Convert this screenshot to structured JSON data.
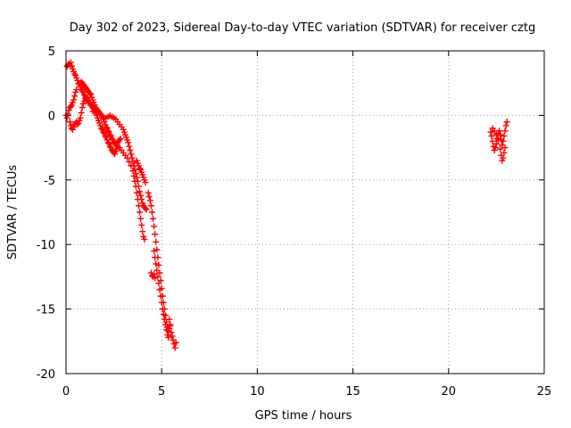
{
  "chart_data": {
    "type": "scatter",
    "title": "Day 302 of 2023, Sidereal Day-to-day VTEC variation (SDTVAR) for receiver cztg",
    "xlabel": "GPS time / hours",
    "ylabel": "SDTVAR / TECUs",
    "xlim": [
      0,
      25
    ],
    "ylim": [
      -20,
      5
    ],
    "xticks": [
      "0",
      "5",
      "10",
      "15",
      "20",
      "25"
    ],
    "yticks": [
      "5",
      "0",
      "-5",
      "-10",
      "-15",
      "-20"
    ],
    "grid": true,
    "marker": "plus",
    "series": [
      {
        "name": "SDTVAR",
        "color": "#ff0000",
        "points": [
          [
            0.05,
            3.8
          ],
          [
            0.1,
            3.9
          ],
          [
            0.15,
            4.0
          ],
          [
            0.2,
            3.9
          ],
          [
            0.25,
            4.1
          ],
          [
            0.3,
            3.8
          ],
          [
            0.35,
            3.6
          ],
          [
            0.4,
            3.4
          ],
          [
            0.45,
            3.2
          ],
          [
            0.5,
            3.1
          ],
          [
            0.55,
            2.9
          ],
          [
            0.6,
            2.7
          ],
          [
            0.65,
            2.5
          ],
          [
            0.7,
            2.4
          ],
          [
            0.75,
            2.2
          ],
          [
            0.8,
            2.0
          ],
          [
            0.85,
            1.9
          ],
          [
            0.9,
            1.8
          ],
          [
            0.95,
            1.6
          ],
          [
            1.0,
            1.5
          ],
          [
            1.05,
            1.4
          ],
          [
            1.1,
            1.3
          ],
          [
            1.15,
            1.1
          ],
          [
            1.2,
            1.0
          ],
          [
            1.25,
            0.9
          ],
          [
            1.3,
            0.8
          ],
          [
            1.35,
            0.7
          ],
          [
            1.4,
            0.6
          ],
          [
            1.45,
            0.5
          ],
          [
            1.5,
            0.3
          ],
          [
            1.55,
            0.2
          ],
          [
            1.6,
            0.0
          ],
          [
            1.65,
            -0.2
          ],
          [
            1.7,
            -0.4
          ],
          [
            1.75,
            -0.6
          ],
          [
            1.8,
            -0.8
          ],
          [
            1.85,
            -1.0
          ],
          [
            1.9,
            -1.1
          ],
          [
            1.95,
            -1.3
          ],
          [
            2.0,
            -1.4
          ],
          [
            2.05,
            -1.6
          ],
          [
            2.1,
            -1.7
          ],
          [
            2.15,
            -1.9
          ],
          [
            2.2,
            -2.1
          ],
          [
            2.25,
            -2.2
          ],
          [
            2.3,
            -2.4
          ],
          [
            2.35,
            -2.5
          ],
          [
            2.4,
            -2.7
          ],
          [
            2.45,
            -2.8
          ],
          [
            2.5,
            -2.9
          ],
          [
            2.55,
            -3.0
          ],
          [
            2.6,
            -2.8
          ],
          [
            2.65,
            -2.6
          ],
          [
            2.7,
            -2.4
          ],
          [
            0.8,
            2.6
          ],
          [
            0.85,
            2.5
          ],
          [
            0.9,
            2.4
          ],
          [
            0.95,
            2.3
          ],
          [
            1.0,
            2.2
          ],
          [
            1.05,
            2.1
          ],
          [
            1.1,
            2.0
          ],
          [
            1.15,
            1.9
          ],
          [
            1.2,
            1.8
          ],
          [
            1.25,
            1.7
          ],
          [
            1.3,
            1.6
          ],
          [
            1.35,
            1.4
          ],
          [
            1.4,
            1.2
          ],
          [
            1.45,
            1.0
          ],
          [
            1.5,
            0.8
          ],
          [
            1.55,
            0.6
          ],
          [
            1.6,
            0.5
          ],
          [
            1.65,
            0.4
          ],
          [
            1.7,
            0.3
          ],
          [
            1.75,
            0.2
          ],
          [
            1.8,
            0.1
          ],
          [
            1.85,
            0.0
          ],
          [
            1.9,
            -0.1
          ],
          [
            1.95,
            -0.3
          ],
          [
            2.0,
            -0.5
          ],
          [
            2.05,
            -0.7
          ],
          [
            2.1,
            -0.9
          ],
          [
            2.15,
            -1.0
          ],
          [
            2.2,
            -1.2
          ],
          [
            2.25,
            -1.3
          ],
          [
            2.3,
            -1.5
          ],
          [
            2.35,
            -1.6
          ],
          [
            2.4,
            -1.8
          ],
          [
            2.45,
            -1.9
          ],
          [
            2.5,
            -2.1
          ],
          [
            2.55,
            -2.2
          ],
          [
            2.6,
            -2.3
          ],
          [
            2.65,
            -2.2
          ],
          [
            2.7,
            -2.1
          ],
          [
            2.75,
            -2.0
          ],
          [
            2.8,
            -1.9
          ],
          [
            2.85,
            -1.8
          ],
          [
            1.4,
            0.3
          ],
          [
            1.5,
            0.4
          ],
          [
            1.6,
            0.5
          ],
          [
            1.7,
            0.3
          ],
          [
            1.8,
            0.1
          ],
          [
            1.9,
            -0.1
          ],
          [
            2.0,
            -0.2
          ],
          [
            2.1,
            -0.2
          ],
          [
            2.2,
            -0.1
          ],
          [
            2.3,
            0.0
          ],
          [
            2.4,
            -0.1
          ],
          [
            2.5,
            -0.2
          ],
          [
            2.6,
            -0.3
          ],
          [
            2.7,
            -0.5
          ],
          [
            2.8,
            -0.7
          ],
          [
            2.9,
            -0.9
          ],
          [
            3.0,
            -1.1
          ],
          [
            3.05,
            -1.3
          ],
          [
            3.1,
            -1.5
          ],
          [
            3.15,
            -1.7
          ],
          [
            3.2,
            -1.9
          ],
          [
            3.25,
            -2.1
          ],
          [
            3.3,
            -2.4
          ],
          [
            3.35,
            -2.7
          ],
          [
            3.4,
            -3.0
          ],
          [
            3.45,
            -3.3
          ],
          [
            3.5,
            -3.6
          ],
          [
            3.55,
            -3.9
          ],
          [
            3.6,
            -4.2
          ],
          [
            3.65,
            -4.5
          ],
          [
            3.7,
            -4.8
          ],
          [
            3.75,
            -5.1
          ],
          [
            3.8,
            -5.5
          ],
          [
            3.85,
            -5.9
          ],
          [
            3.9,
            -6.2
          ],
          [
            3.95,
            -6.5
          ],
          [
            4.0,
            -6.8
          ],
          [
            4.05,
            -7.0
          ],
          [
            4.1,
            -7.1
          ],
          [
            4.15,
            -7.2
          ],
          [
            4.2,
            -7.3
          ],
          [
            2.6,
            -2.2
          ],
          [
            2.7,
            -2.4
          ],
          [
            2.8,
            -2.5
          ],
          [
            2.9,
            -2.7
          ],
          [
            3.0,
            -2.9
          ],
          [
            3.1,
            -3.1
          ],
          [
            3.2,
            -3.3
          ],
          [
            3.3,
            -3.6
          ],
          [
            3.4,
            -3.9
          ],
          [
            3.5,
            -4.3
          ],
          [
            3.55,
            -4.7
          ],
          [
            3.6,
            -5.1
          ],
          [
            3.65,
            -5.5
          ],
          [
            3.7,
            -6.0
          ],
          [
            3.75,
            -6.5
          ],
          [
            3.8,
            -7.0
          ],
          [
            3.85,
            -7.5
          ],
          [
            3.9,
            -8.0
          ],
          [
            3.95,
            -8.5
          ],
          [
            4.0,
            -9.0
          ],
          [
            4.05,
            -9.4
          ],
          [
            4.1,
            -9.6
          ],
          [
            3.7,
            -3.5
          ],
          [
            3.75,
            -3.7
          ],
          [
            3.8,
            -3.9
          ],
          [
            3.85,
            -4.1
          ],
          [
            3.9,
            -4.2
          ],
          [
            3.95,
            -4.4
          ],
          [
            4.0,
            -4.6
          ],
          [
            4.05,
            -4.8
          ],
          [
            4.1,
            -5.0
          ],
          [
            4.15,
            -5.2
          ],
          [
            4.3,
            -6.0
          ],
          [
            4.35,
            -6.3
          ],
          [
            4.4,
            -6.6
          ],
          [
            4.45,
            -7.0
          ],
          [
            4.5,
            -7.5
          ],
          [
            4.55,
            -8.0
          ],
          [
            4.6,
            -8.6
          ],
          [
            4.65,
            -9.2
          ],
          [
            4.7,
            -9.8
          ],
          [
            4.75,
            -10.4
          ],
          [
            4.8,
            -11.0
          ],
          [
            4.85,
            -11.6
          ],
          [
            4.9,
            -12.2
          ],
          [
            4.95,
            -12.8
          ],
          [
            5.0,
            -13.4
          ],
          [
            5.05,
            -14.0
          ],
          [
            5.1,
            -14.5
          ],
          [
            5.15,
            -15.0
          ],
          [
            5.2,
            -15.5
          ],
          [
            5.25,
            -16.0
          ],
          [
            5.3,
            -16.4
          ],
          [
            5.35,
            -16.7
          ],
          [
            5.4,
            -16.5
          ],
          [
            5.45,
            -16.2
          ],
          [
            4.6,
            -10.5
          ],
          [
            4.65,
            -11.0
          ],
          [
            4.7,
            -11.5
          ],
          [
            4.75,
            -12.0
          ],
          [
            4.8,
            -12.5
          ],
          [
            4.85,
            -13.0
          ],
          [
            4.9,
            -13.5
          ],
          [
            4.95,
            -14.0
          ],
          [
            5.0,
            -14.5
          ],
          [
            5.05,
            -15.0
          ],
          [
            5.1,
            -15.4
          ],
          [
            5.15,
            -15.8
          ],
          [
            5.2,
            -16.2
          ],
          [
            5.25,
            -16.6
          ],
          [
            5.3,
            -17.0
          ],
          [
            5.35,
            -17.2
          ],
          [
            5.4,
            -15.8
          ],
          [
            5.45,
            -16.3
          ],
          [
            5.5,
            -16.8
          ],
          [
            5.55,
            -17.1
          ],
          [
            5.6,
            -17.4
          ],
          [
            5.65,
            -17.7
          ],
          [
            5.7,
            -18.0
          ],
          [
            5.75,
            -17.6
          ],
          [
            4.45,
            -12.2
          ],
          [
            4.5,
            -12.4
          ],
          [
            4.55,
            -12.5
          ],
          [
            4.6,
            -12.3
          ],
          [
            4.65,
            -12.6
          ],
          [
            0.0,
            0.0
          ],
          [
            0.05,
            -0.2
          ],
          [
            0.1,
            0.1
          ],
          [
            0.15,
            0.4
          ],
          [
            0.2,
            0.6
          ],
          [
            0.25,
            0.7
          ],
          [
            0.3,
            0.8
          ],
          [
            0.35,
            1.0
          ],
          [
            0.4,
            1.2
          ],
          [
            0.45,
            1.5
          ],
          [
            0.5,
            1.8
          ],
          [
            0.55,
            2.0
          ],
          [
            0.2,
            -0.5
          ],
          [
            0.25,
            -0.8
          ],
          [
            0.3,
            -1.0
          ],
          [
            0.35,
            -1.1
          ],
          [
            0.4,
            -0.9
          ],
          [
            0.45,
            -0.7
          ],
          [
            0.5,
            -0.6
          ],
          [
            0.55,
            -0.5
          ],
          [
            0.6,
            -0.7
          ],
          [
            0.65,
            -0.6
          ],
          [
            0.7,
            -0.4
          ],
          [
            0.75,
            -0.2
          ],
          [
            0.8,
            0.2
          ],
          [
            0.85,
            0.6
          ],
          [
            0.9,
            0.9
          ],
          [
            0.95,
            1.1
          ],
          [
            1.0,
            1.3
          ],
          [
            1.05,
            1.2
          ],
          [
            22.2,
            -1.3
          ],
          [
            22.25,
            -1.6
          ],
          [
            22.3,
            -2.0
          ],
          [
            22.35,
            -2.4
          ],
          [
            22.4,
            -2.7
          ],
          [
            22.45,
            -2.5
          ],
          [
            22.5,
            -2.2
          ],
          [
            22.55,
            -1.8
          ],
          [
            22.6,
            -1.4
          ],
          [
            22.65,
            -1.2
          ],
          [
            22.7,
            -1.5
          ],
          [
            22.75,
            -1.9
          ],
          [
            22.8,
            -2.3
          ],
          [
            22.85,
            -2.0
          ],
          [
            22.9,
            -1.6
          ],
          [
            22.95,
            -1.2
          ],
          [
            23.0,
            -0.8
          ],
          [
            23.05,
            -0.5
          ],
          [
            22.3,
            -1.0
          ],
          [
            22.4,
            -1.2
          ],
          [
            22.5,
            -1.5
          ],
          [
            22.6,
            -1.9
          ],
          [
            22.7,
            -2.6
          ],
          [
            22.75,
            -3.1
          ],
          [
            22.8,
            -3.5
          ],
          [
            22.85,
            -3.3
          ],
          [
            22.9,
            -2.9
          ],
          [
            22.95,
            -2.5
          ]
        ]
      }
    ]
  }
}
